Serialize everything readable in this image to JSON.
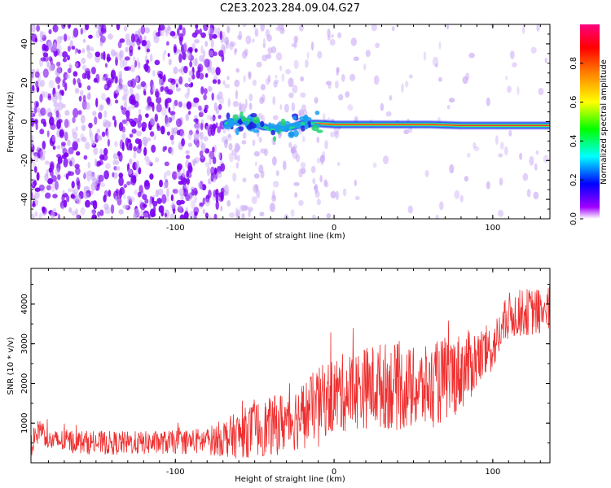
{
  "title": "C2E3.2023.284.09.04.G27",
  "colors": {
    "snr_line": "#ef3030",
    "scatter_violet": "#7a00f0",
    "scatter_light": "#c9a8f5",
    "ridge_core": "#e8352a",
    "ridge_edge": "#22d48a",
    "ridge_outer": "#2a3cf0"
  },
  "chart_data": [
    {
      "type": "heatmap",
      "xlabel": "Height of straight line (km)",
      "ylabel": "Frequency (Hz)",
      "xlim": [
        -191,
        136
      ],
      "ylim": [
        -50,
        50
      ],
      "xticks": [
        -100,
        0,
        100
      ],
      "yticks": [
        -40,
        -20,
        0,
        20,
        40
      ],
      "grid": false,
      "ridge": {
        "x": [
          -68,
          -60,
          -50,
          -40,
          -30,
          -20,
          -10,
          0,
          20,
          40,
          60,
          80,
          95,
          136
        ],
        "frequency": [
          -1,
          1,
          -1,
          -4,
          -4,
          -1,
          -1,
          -1.5,
          -1.5,
          -1.5,
          -1.5,
          -2,
          -2,
          -2
        ]
      },
      "colorbar": {
        "label": "Normalized spectral amplitude",
        "ticks": [
          0.0,
          0.2,
          0.4,
          0.6,
          0.8
        ],
        "range": [
          0,
          1
        ],
        "colormap": [
          "#ffffff",
          "#a000ff",
          "#0000ff",
          "#00ffff",
          "#00ff00",
          "#ffff00",
          "#ff8000",
          "#ff0000",
          "#ff0080"
        ]
      }
    },
    {
      "type": "line",
      "xlabel": "Height of straight line (km)",
      "ylabel": "SNR (10 * v/v)",
      "xlim": [
        -191,
        136
      ],
      "ylim": [
        0,
        4900
      ],
      "xticks": [
        -100,
        0,
        100
      ],
      "yticks": [
        1000,
        2000,
        3000,
        4000
      ],
      "grid": false,
      "series": [
        {
          "x": [
            -191,
            -185,
            -180,
            -170,
            -150,
            -120,
            -100,
            -80,
            -60,
            -50,
            -40,
            -30,
            -20,
            -10,
            0,
            10,
            20,
            30,
            40,
            50,
            60,
            70,
            80,
            90,
            100,
            105,
            110,
            120,
            130,
            136
          ],
          "mean": [
            450,
            900,
            550,
            550,
            500,
            500,
            520,
            550,
            700,
            850,
            900,
            1050,
            1200,
            1500,
            1700,
            1800,
            1900,
            1950,
            1900,
            1850,
            1900,
            2100,
            2300,
            2600,
            2900,
            3300,
            3700,
            3800,
            3800,
            3900
          ],
          "spread": [
            300,
            300,
            250,
            300,
            300,
            300,
            300,
            350,
            600,
            700,
            750,
            800,
            850,
            900,
            1000,
            1000,
            1050,
            1100,
            1100,
            1050,
            1050,
            1100,
            1000,
            800,
            600,
            600,
            600,
            600,
            600,
            600
          ]
        }
      ]
    }
  ]
}
